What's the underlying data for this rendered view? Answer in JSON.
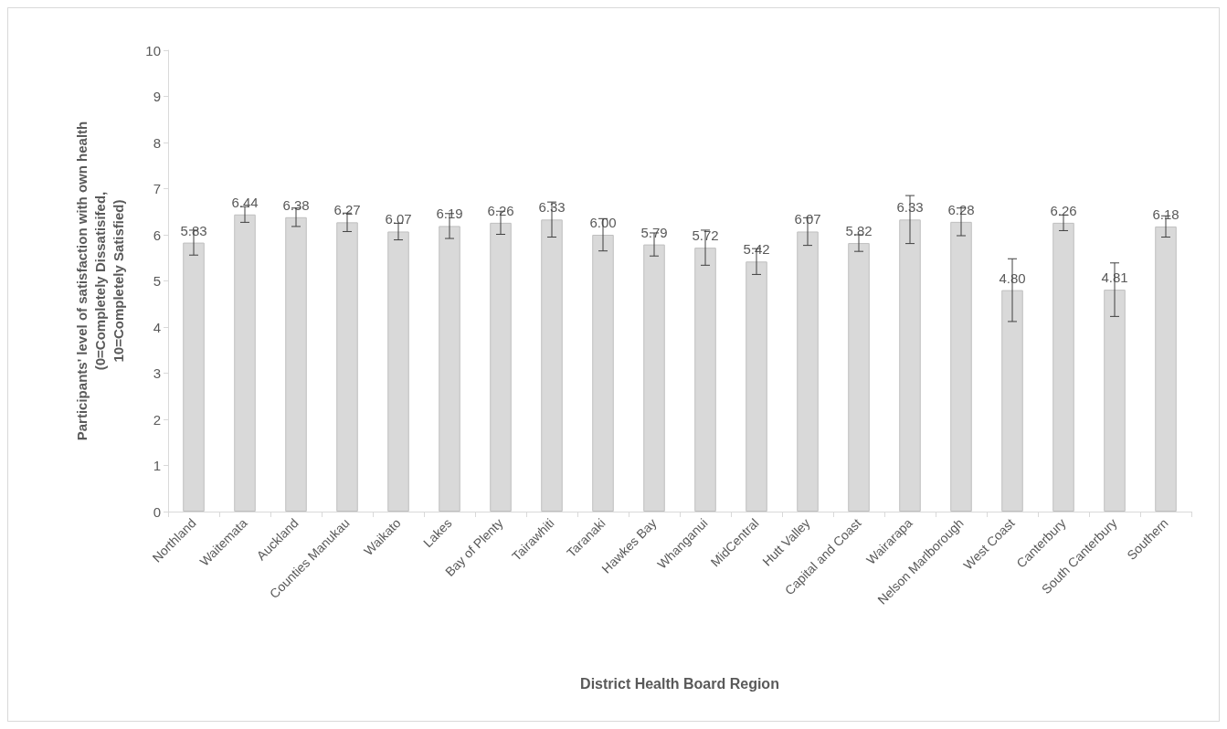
{
  "chart_data": {
    "type": "bar",
    "xlabel": "District Health Board Region",
    "ylabel": "Participants' level of satisfaction with own health\n(0=Completely Dissatisifed,\n10=Completely Satisfied)",
    "categories": [
      "Northland",
      "Waitemata",
      "Auckland",
      "Counties Manukau",
      "Waikato",
      "Lakes",
      "Bay of Plenty",
      "Tairawhiti",
      "Taranaki",
      "Hawkes Bay",
      "Whanganui",
      "MidCentral",
      "Hutt Valley",
      "Capital and Coast",
      "Wairarapa",
      "Nelson Marlborough",
      "West Coast",
      "Canterbury",
      "South Canterbury",
      "Southern"
    ],
    "values": [
      5.83,
      6.44,
      6.38,
      6.27,
      6.07,
      6.19,
      6.26,
      6.33,
      6.0,
      5.79,
      5.72,
      5.42,
      6.07,
      5.82,
      6.33,
      6.28,
      4.8,
      6.26,
      4.81,
      6.18
    ],
    "value_labels": [
      "5.83",
      "6.44",
      "6.38",
      "6.27",
      "6.07",
      "6.19",
      "6.26",
      "6.33",
      "6.00",
      "5.79",
      "5.72",
      "5.42",
      "6.07",
      "5.82",
      "6.33",
      "6.28",
      "4.80",
      "6.26",
      "4.81",
      "6.18"
    ],
    "errors": [
      0.27,
      0.17,
      0.2,
      0.2,
      0.18,
      0.27,
      0.25,
      0.38,
      0.35,
      0.25,
      0.38,
      0.28,
      0.3,
      0.18,
      0.52,
      0.3,
      0.68,
      0.17,
      0.58,
      0.23
    ],
    "color": "#d9d9d9",
    "ylim": [
      0,
      10
    ],
    "yticks": [
      0,
      1,
      2,
      3,
      4,
      5,
      6,
      7,
      8,
      9,
      10
    ],
    "grid": false
  }
}
